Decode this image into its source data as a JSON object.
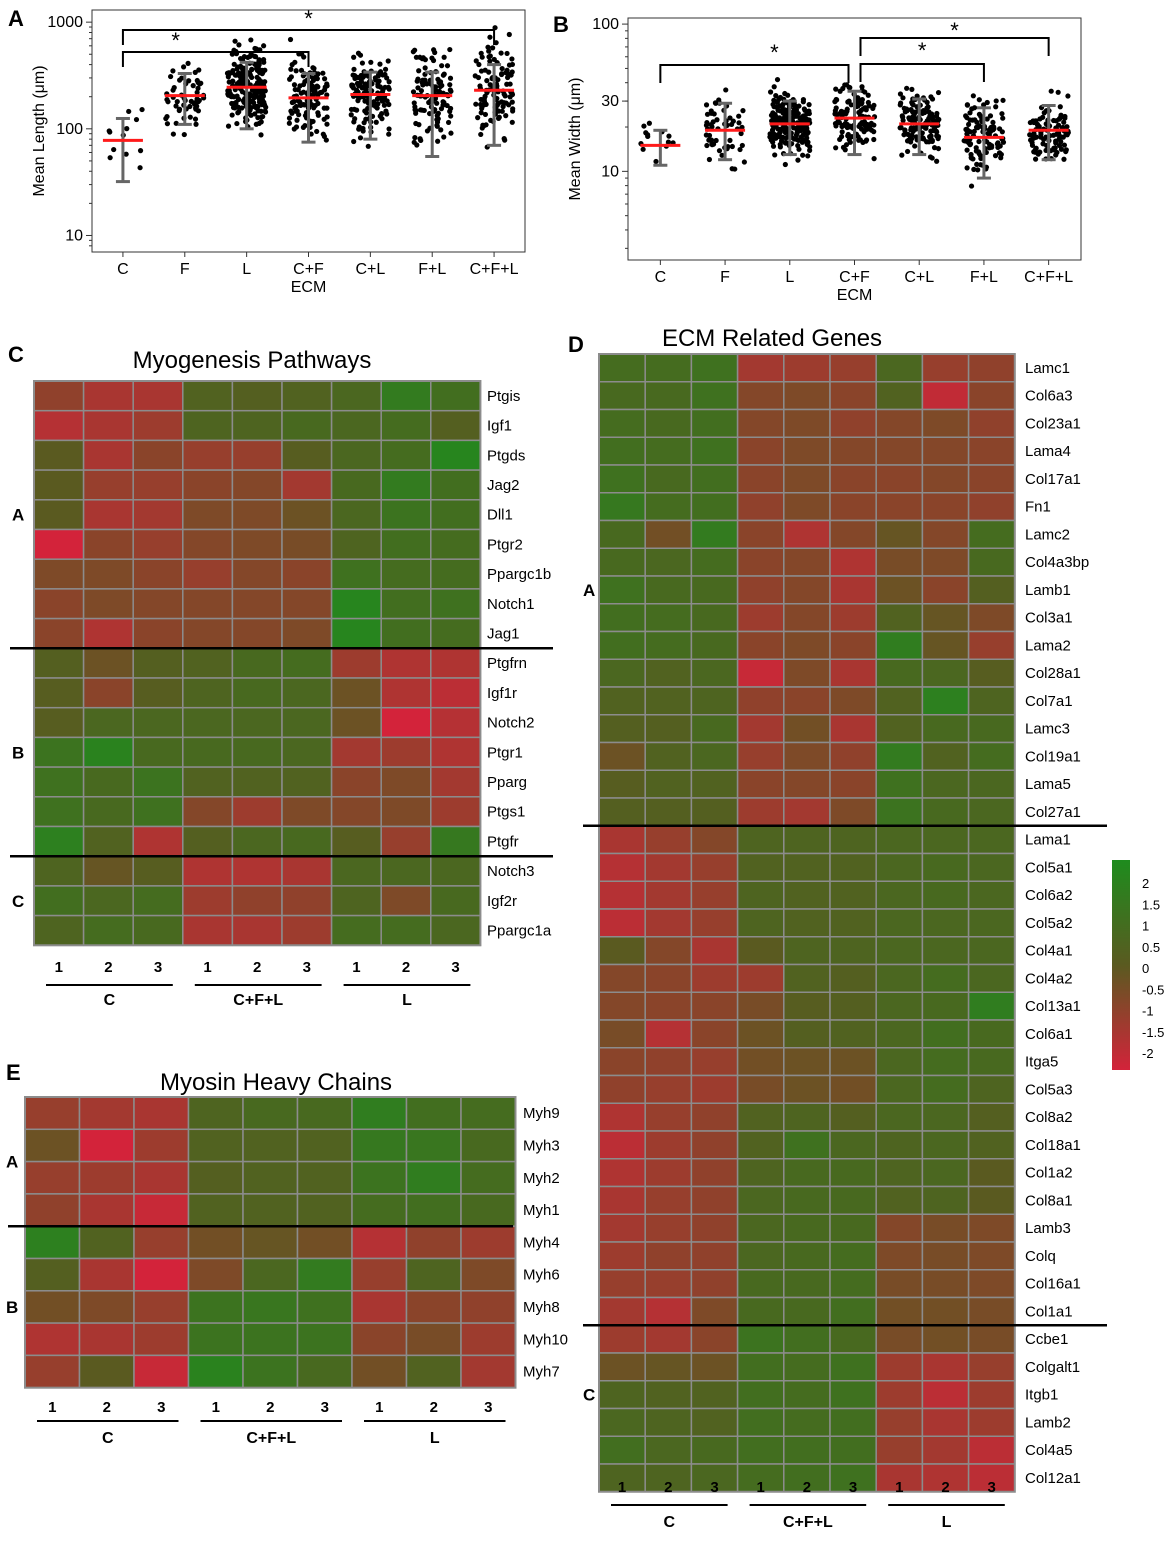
{
  "panels": {
    "A": {
      "letter": "A"
    },
    "B": {
      "letter": "B"
    },
    "C": {
      "letter": "C",
      "title": "Myogenesis Pathways"
    },
    "D": {
      "letter": "D",
      "title": "ECM Related Genes"
    },
    "E": {
      "letter": "E",
      "title": "Myosin Heavy Chains"
    }
  },
  "chart_data": [
    {
      "id": "A",
      "type": "scatter",
      "ylabel": "Mean Length (μm)",
      "yscale": "log",
      "ylim": [
        7,
        1300
      ],
      "yticks": [
        10,
        100,
        1000
      ],
      "ytick_labels": [
        "10",
        "100",
        "1000"
      ],
      "categories": [
        "C",
        "F",
        "L",
        "C+F",
        "C+L",
        "F+L",
        "C+F+L"
      ],
      "xgroup_label": "ECM",
      "means": [
        78,
        205,
        245,
        195,
        210,
        205,
        230
      ],
      "sd_low": [
        32,
        110,
        100,
        75,
        80,
        55,
        70
      ],
      "sd_high": [
        125,
        330,
        420,
        330,
        340,
        340,
        400
      ],
      "n_points": [
        12,
        55,
        200,
        110,
        130,
        110,
        110
      ],
      "point_range": [
        [
          12,
          170
        ],
        [
          55,
          650
        ],
        [
          15,
          780
        ],
        [
          18,
          800
        ],
        [
          11,
          900
        ],
        [
          22,
          960
        ],
        [
          7,
          1080
        ]
      ],
      "significance": [
        {
          "from": "C",
          "to": "C+F",
          "label": "*"
        },
        {
          "from": "C",
          "to": "C+F+L",
          "label": "*"
        }
      ]
    },
    {
      "id": "B",
      "type": "scatter",
      "ylabel": "Mean Width (μm)",
      "yscale": "log",
      "ylim": [
        2.5,
        110
      ],
      "yticks": [
        10,
        30,
        100
      ],
      "ytick_labels": [
        "10",
        "30",
        "100"
      ],
      "categories": [
        "C",
        "F",
        "L",
        "C+F",
        "C+L",
        "F+L",
        "C+F+L"
      ],
      "xgroup_label": "ECM",
      "means": [
        15,
        19,
        21,
        23,
        21,
        17,
        19
      ],
      "sd_low": [
        11,
        12,
        13,
        13,
        13,
        9,
        12
      ],
      "sd_high": [
        19,
        29,
        30,
        35,
        31,
        27,
        28
      ],
      "n_points": [
        13,
        55,
        200,
        110,
        130,
        110,
        100
      ],
      "point_range": [
        [
          9.5,
          22
        ],
        [
          8,
          60
        ],
        [
          7,
          50
        ],
        [
          3,
          55
        ],
        [
          7,
          55
        ],
        [
          6,
          33
        ],
        [
          6,
          38
        ]
      ],
      "significance": [
        {
          "from": "C",
          "to": "C+F",
          "label": "*"
        },
        {
          "from": "C+F",
          "to": "F+L",
          "label": "*"
        },
        {
          "from": "C+F",
          "to": "C+F+L",
          "label": "*"
        }
      ]
    },
    {
      "id": "C",
      "type": "heatmap",
      "title": "Myogenesis Pathways",
      "columns": [
        "1",
        "2",
        "3",
        "1",
        "2",
        "3",
        "1",
        "2",
        "3"
      ],
      "groups": [
        "C",
        "C+F+L",
        "L"
      ],
      "clusters": [
        {
          "label": "A",
          "start": 0,
          "end": 8
        },
        {
          "label": "B",
          "start": 9,
          "end": 15
        },
        {
          "label": "C",
          "start": 16,
          "end": 18
        }
      ],
      "rows": [
        "Ptgis",
        "Igf1",
        "Ptgds",
        "Jag2",
        "Dll1",
        "Ptgr2",
        "Ppargc1b",
        "Notch1",
        "Jag1",
        "Ptgfrn",
        "Igf1r",
        "Notch2",
        "Ptgr1",
        "Pparg",
        "Ptgs1",
        "Ptgfr",
        "Notch3",
        "Igf2r",
        "Ppargc1a"
      ],
      "values": [
        [
          -0.9,
          -1.3,
          -1.3,
          0.3,
          0.2,
          0.3,
          0.5,
          1.3,
          0.8
        ],
        [
          -1.5,
          -1.3,
          -1.1,
          0.4,
          0.4,
          0.6,
          0.5,
          0.7,
          0.2
        ],
        [
          0.0,
          -1.3,
          -0.8,
          -1.0,
          -1.0,
          0.1,
          0.5,
          0.7,
          1.7
        ],
        [
          0.0,
          -1.0,
          -1.0,
          -0.8,
          -0.7,
          -1.2,
          0.6,
          1.3,
          0.8
        ],
        [
          0.0,
          -1.3,
          -1.2,
          -0.6,
          -0.6,
          -0.3,
          0.5,
          1.0,
          0.8
        ],
        [
          -2.0,
          -0.8,
          -1.0,
          -0.7,
          -0.6,
          -0.5,
          0.4,
          0.8,
          0.7
        ],
        [
          -0.6,
          -0.6,
          -0.8,
          -1.0,
          -0.7,
          -0.8,
          0.9,
          0.7,
          0.7
        ],
        [
          -0.8,
          -0.6,
          -0.7,
          -0.7,
          -0.7,
          -0.7,
          1.7,
          0.8,
          0.9
        ],
        [
          -0.8,
          -1.4,
          -0.8,
          -0.7,
          -0.7,
          -0.6,
          1.7,
          0.8,
          0.7
        ],
        [
          0.2,
          -0.3,
          0.2,
          0.3,
          0.6,
          0.7,
          -1.1,
          -1.4,
          -1.4
        ],
        [
          0.1,
          -0.8,
          0.1,
          0.4,
          0.6,
          0.5,
          -0.3,
          -1.4,
          -1.6
        ],
        [
          0.1,
          0.5,
          0.5,
          0.5,
          0.5,
          0.5,
          -0.3,
          -2.0,
          -1.5
        ],
        [
          1.0,
          1.6,
          0.6,
          0.6,
          0.6,
          0.5,
          -1.2,
          -1.1,
          -1.4
        ],
        [
          0.9,
          0.6,
          1.0,
          0.3,
          0.3,
          0.3,
          -0.8,
          -0.6,
          -1.2
        ],
        [
          0.9,
          0.6,
          0.9,
          -0.7,
          -1.1,
          -0.6,
          -0.7,
          -0.6,
          -1.1
        ],
        [
          1.5,
          0.3,
          -1.4,
          0.2,
          0.5,
          0.6,
          0.1,
          -1.0,
          1.2
        ],
        [
          0.4,
          -0.2,
          0.1,
          -1.4,
          -1.4,
          -1.3,
          0.5,
          0.5,
          0.5
        ],
        [
          0.8,
          0.5,
          0.7,
          -1.1,
          -0.9,
          -0.9,
          0.4,
          -0.6,
          0.6
        ],
        [
          0.4,
          0.7,
          0.6,
          -1.3,
          -1.3,
          -1.1,
          0.7,
          0.7,
          0.5
        ]
      ]
    },
    {
      "id": "D",
      "type": "heatmap",
      "title": "ECM Related Genes",
      "columns": [
        "1",
        "2",
        "3",
        "1",
        "2",
        "3",
        "1",
        "2",
        "3"
      ],
      "groups": [
        "C",
        "C+F+L",
        "L"
      ],
      "clusters": [
        {
          "label": "A",
          "start": 0,
          "end": 16
        },
        {
          "label": "",
          "start": 17,
          "end": 34
        },
        {
          "label": "C",
          "start": 35,
          "end": 39
        }
      ],
      "rows": [
        "Lamc1",
        "Col6a3",
        "Col23a1",
        "Lama4",
        "Col17a1",
        "Fn1",
        "Lamc2",
        "Col4a3bp",
        "Lamb1",
        "Col3a1",
        "Lama2",
        "Col28a1",
        "Col7a1",
        "Lamc3",
        "Col19a1",
        "Lama5",
        "Col27a1",
        "Lama1",
        "Col5a1",
        "Col6a2",
        "Col5a2",
        "Col4a1",
        "Col4a2",
        "Col13a1",
        "Col6a1",
        "Itga5",
        "Col5a3",
        "Col8a2",
        "Col18a1",
        "Col1a2",
        "Col8a1",
        "Lamb3",
        "Colq",
        "Col16a1",
        "Col1a1",
        "Ccbe1",
        "Colgalt1",
        "Itgb1",
        "Lamb2",
        "Col4a5",
        "Col12a1"
      ],
      "values": [
        [
          0.7,
          0.7,
          0.9,
          -1.2,
          -1.1,
          -1.0,
          0.5,
          -1.0,
          -0.9
        ],
        [
          0.6,
          0.6,
          0.9,
          -0.7,
          -0.6,
          -0.8,
          0.3,
          -1.7,
          -0.8
        ],
        [
          0.7,
          0.6,
          0.8,
          -0.7,
          -0.6,
          -0.9,
          -0.7,
          -0.6,
          -0.9
        ],
        [
          0.8,
          0.7,
          0.9,
          -0.8,
          -0.6,
          -0.7,
          -0.7,
          -0.7,
          -0.8
        ],
        [
          0.9,
          0.6,
          0.8,
          -0.8,
          -0.6,
          -0.8,
          -0.8,
          -0.7,
          -0.8
        ],
        [
          1.2,
          0.7,
          0.8,
          -0.9,
          -0.6,
          -0.8,
          -0.8,
          -0.8,
          -0.9
        ],
        [
          0.6,
          -0.4,
          1.3,
          -0.8,
          -1.4,
          -0.7,
          -0.2,
          -0.7,
          0.7
        ],
        [
          0.6,
          0.5,
          0.7,
          -0.8,
          -0.7,
          -1.4,
          -0.5,
          -0.6,
          0.6
        ],
        [
          0.9,
          0.6,
          0.6,
          -0.9,
          -0.7,
          -1.3,
          -0.3,
          -0.8,
          0.2
        ],
        [
          0.8,
          0.7,
          0.6,
          -1.1,
          -0.7,
          -1.1,
          0.3,
          -0.2,
          -0.6
        ],
        [
          0.8,
          0.7,
          0.6,
          -0.8,
          -0.6,
          -0.8,
          1.4,
          -0.2,
          -1.0
        ],
        [
          0.5,
          0.3,
          0.5,
          -1.8,
          -0.6,
          -1.3,
          0.6,
          0.5,
          0.1
        ],
        [
          0.3,
          0.3,
          0.4,
          -0.9,
          -0.8,
          -0.6,
          0.3,
          1.5,
          0.4
        ],
        [
          0.2,
          0.2,
          0.6,
          -1.2,
          -0.4,
          -1.3,
          0.3,
          0.6,
          0.6
        ],
        [
          -0.3,
          0.3,
          0.5,
          -1.0,
          -0.6,
          -0.9,
          1.3,
          0.3,
          0.7
        ],
        [
          0.1,
          0.3,
          0.3,
          -0.8,
          -0.7,
          -0.8,
          0.9,
          0.5,
          0.5
        ],
        [
          0.2,
          0.2,
          0.2,
          -1.1,
          -1.2,
          -0.6,
          1.0,
          0.6,
          0.5
        ],
        [
          -1.3,
          -1.0,
          -0.7,
          0.4,
          0.4,
          0.4,
          0.5,
          0.5,
          0.5
        ],
        [
          -1.5,
          -1.2,
          -1.0,
          0.3,
          0.3,
          0.3,
          0.5,
          0.6,
          0.5
        ],
        [
          -1.5,
          -1.2,
          -1.0,
          0.4,
          0.3,
          0.3,
          0.5,
          0.6,
          0.5
        ],
        [
          -1.6,
          -1.2,
          -1.0,
          0.4,
          0.3,
          0.3,
          0.5,
          0.5,
          0.5
        ],
        [
          0.0,
          -0.7,
          -1.3,
          0.0,
          0.4,
          0.4,
          0.5,
          0.5,
          0.5
        ],
        [
          -0.7,
          -0.8,
          -1.1,
          -1.1,
          0.3,
          0.2,
          0.5,
          0.7,
          0.5
        ],
        [
          -0.7,
          -0.8,
          -0.8,
          -0.5,
          0.1,
          0.2,
          0.5,
          0.6,
          1.4
        ],
        [
          -0.5,
          -1.5,
          -0.8,
          -0.3,
          0.2,
          0.3,
          0.5,
          0.8,
          0.6
        ],
        [
          -0.8,
          -0.9,
          -1.0,
          -0.4,
          -0.3,
          -0.3,
          0.5,
          0.7,
          0.6
        ],
        [
          -0.9,
          -1.0,
          -1.1,
          -0.5,
          -0.3,
          -0.4,
          0.5,
          0.7,
          0.4
        ],
        [
          -1.4,
          -1.0,
          -0.9,
          0.3,
          0.4,
          0.2,
          0.5,
          0.5,
          0.2
        ],
        [
          -1.6,
          -1.1,
          -0.9,
          0.3,
          0.9,
          0.5,
          0.4,
          0.5,
          0.3
        ],
        [
          -1.4,
          -1.1,
          -0.9,
          0.4,
          0.6,
          0.6,
          0.4,
          0.5,
          0.0
        ],
        [
          -1.3,
          -1.0,
          -0.9,
          0.5,
          0.6,
          0.6,
          0.3,
          0.4,
          0.0
        ],
        [
          -1.2,
          -1.0,
          -0.9,
          0.5,
          0.6,
          0.6,
          -0.7,
          -0.5,
          -0.6
        ],
        [
          -1.1,
          -0.9,
          -0.9,
          0.5,
          0.6,
          0.7,
          -0.6,
          -0.5,
          -0.6
        ],
        [
          -1.0,
          -1.0,
          -0.9,
          0.6,
          0.6,
          0.7,
          -0.5,
          -0.5,
          -0.6
        ],
        [
          -1.2,
          -1.5,
          -0.6,
          0.6,
          0.6,
          0.8,
          -0.4,
          -0.4,
          -0.5
        ],
        [
          -1.1,
          -1.2,
          -0.8,
          1.0,
          0.8,
          0.6,
          -0.5,
          -0.4,
          -0.5
        ],
        [
          -0.3,
          -0.2,
          -0.3,
          0.8,
          0.7,
          0.9,
          -1.1,
          -1.3,
          -1.0
        ],
        [
          0.4,
          0.3,
          0.3,
          0.8,
          0.7,
          0.9,
          -1.1,
          -1.6,
          -1.1
        ],
        [
          0.5,
          0.4,
          0.3,
          0.8,
          0.7,
          0.8,
          -1.0,
          -1.3,
          -1.1
        ],
        [
          0.8,
          0.5,
          0.6,
          0.8,
          0.8,
          0.8,
          -1.0,
          -1.2,
          -1.6
        ],
        [
          0.4,
          0.4,
          0.5,
          0.7,
          0.8,
          0.9,
          -1.3,
          -1.4,
          -1.6
        ]
      ]
    },
    {
      "id": "E",
      "type": "heatmap",
      "title": "Myosin Heavy Chains",
      "columns": [
        "1",
        "2",
        "3",
        "1",
        "2",
        "3",
        "1",
        "2",
        "3"
      ],
      "groups": [
        "C",
        "C+F+L",
        "L"
      ],
      "clusters": [
        {
          "label": "A",
          "start": 0,
          "end": 3
        },
        {
          "label": "B",
          "start": 4,
          "end": 8
        }
      ],
      "rows": [
        "Myh9",
        "Myh3",
        "Myh2",
        "Myh1",
        "Myh4",
        "Myh6",
        "Myh8",
        "Myh10",
        "Myh7"
      ],
      "values": [
        [
          -1.0,
          -1.2,
          -1.3,
          0.4,
          0.6,
          0.6,
          1.4,
          0.8,
          0.7
        ],
        [
          -0.3,
          -2.0,
          -1.1,
          0.3,
          0.3,
          0.3,
          1.2,
          1.1,
          0.6
        ],
        [
          -1.0,
          -1.1,
          -1.3,
          0.2,
          0.3,
          0.3,
          1.0,
          1.4,
          0.7
        ],
        [
          -0.9,
          -1.3,
          -1.8,
          0.3,
          0.3,
          0.3,
          0.7,
          0.8,
          0.6
        ],
        [
          1.5,
          0.3,
          -1.0,
          -0.4,
          -0.2,
          -0.4,
          -1.5,
          -0.9,
          -1.1
        ],
        [
          0.2,
          -1.3,
          -2.0,
          -0.6,
          0.5,
          1.3,
          -1.0,
          0.4,
          -0.6
        ],
        [
          -0.4,
          -0.6,
          -1.0,
          1.0,
          1.1,
          0.9,
          -1.3,
          -0.8,
          -0.9
        ],
        [
          -1.4,
          -1.3,
          -1.1,
          1.0,
          1.0,
          1.0,
          -0.8,
          -0.5,
          -1.1
        ],
        [
          -1.0,
          0.0,
          -1.8,
          1.6,
          1.0,
          0.6,
          -0.4,
          0.3,
          -1.2
        ]
      ]
    }
  ],
  "colorbar": {
    "ticks": [
      "2",
      "1.5",
      "1",
      "0.5",
      "0",
      "-0.5",
      "-1",
      "-1.5",
      "-2"
    ],
    "high_color": "#1e8c1e",
    "mid_color": "#5a5a20",
    "low_color": "#d3233a"
  },
  "colors": {
    "mean_line": "#ff1a1a",
    "sd_bar": "#666666",
    "points": "#000000",
    "grid_line": "#8c8c8c"
  }
}
